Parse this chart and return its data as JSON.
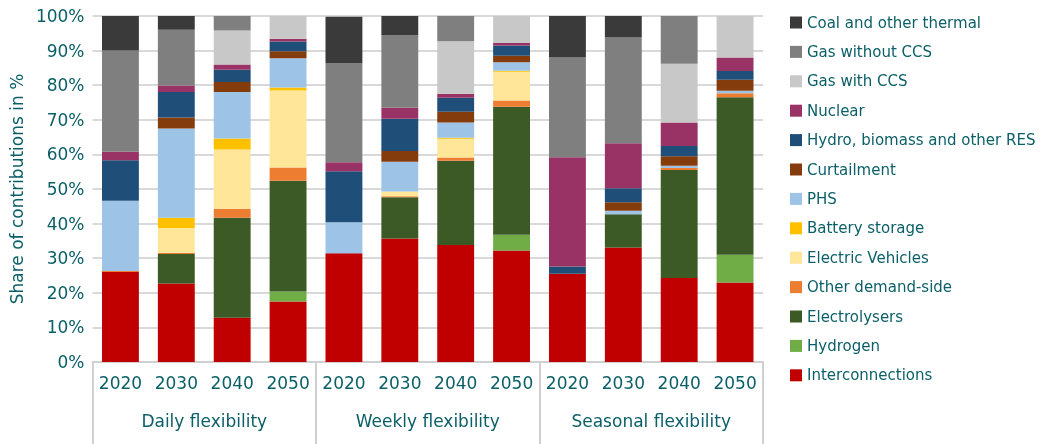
{
  "chart_data": {
    "type": "bar",
    "stacked": true,
    "ylabel": "Share of contributions in %",
    "categories": [
      "2020",
      "2030",
      "2040",
      "2050",
      "2020",
      "2030",
      "2040",
      "2050",
      "2020",
      "2030",
      "2040",
      "2050"
    ],
    "annotations": [
      "Daily flexibility",
      "Weekly flexibility",
      "Seasonal flexibility"
    ],
    "ylim": [
      0,
      100
    ],
    "yticks": [
      {
        "value": 0,
        "label": "0%"
      },
      {
        "value": 10,
        "label": "10%"
      },
      {
        "value": 20,
        "label": "20%"
      },
      {
        "value": 30,
        "label": "30%"
      },
      {
        "value": 40,
        "label": "40%"
      },
      {
        "value": 50,
        "label": "50%"
      },
      {
        "value": 60,
        "label": "60%"
      },
      {
        "value": 70,
        "label": "70%"
      },
      {
        "value": 80,
        "label": "80%"
      },
      {
        "value": 90,
        "label": "90%"
      },
      {
        "value": 100,
        "label": "100%"
      }
    ],
    "grid": "y",
    "legend": "right",
    "series": [
      {
        "name": "Interconnections",
        "color": "#c00000",
        "values": [
          26,
          22.7,
          12.8,
          17.5,
          31.4,
          35.7,
          33.8,
          32.2,
          25.5,
          33.1,
          24.3,
          23
        ]
      },
      {
        "name": "Hydrogen",
        "color": "#70ad47",
        "values": [
          0,
          0,
          0,
          2.9,
          0,
          0,
          0,
          4.6,
          0,
          0,
          0,
          8
        ]
      },
      {
        "name": "Electrolysers",
        "color": "#3b5a25",
        "values": [
          0,
          8.5,
          28.9,
          32,
          0,
          11.9,
          24.4,
          37,
          0,
          9.6,
          31.2,
          45.5
        ]
      },
      {
        "name": "Other demand-side",
        "color": "#ed7d31",
        "values": [
          0.3,
          0.4,
          2.6,
          3.8,
          null,
          0.3,
          0.9,
          1.8,
          0,
          0,
          0.6,
          1.2
        ]
      },
      {
        "name": "Electric Vehicles",
        "color": "#ffe699",
        "values": [
          0,
          7.1,
          17.1,
          22.3,
          0,
          1.4,
          5.4,
          8.3,
          0,
          0,
          0,
          0
        ]
      },
      {
        "name": "Battery storage",
        "color": "#ffc000",
        "values": [
          0,
          3,
          3.2,
          0.8,
          0,
          0,
          0.3,
          0.3,
          0,
          0,
          0,
          0
        ]
      },
      {
        "name": "PHS",
        "color": "#9dc3e6",
        "values": [
          20.3,
          25.8,
          13.4,
          8.5,
          9,
          8.6,
          4.4,
          2.4,
          0,
          1,
          0.6,
          0.7
        ]
      },
      {
        "name": "Curtailment",
        "color": "#843c0c",
        "values": [
          0,
          3.2,
          2.9,
          2,
          0,
          3.1,
          3.1,
          1.9,
          0,
          2.5,
          2.8,
          3.2
        ]
      },
      {
        "name": "Hydro, biomass and other RES",
        "color": "#1f4e79",
        "values": [
          11.7,
          7.3,
          3.6,
          2.8,
          14.7,
          9.3,
          4.1,
          3,
          2.1,
          4,
          2.9,
          2.5
        ]
      },
      {
        "name": "Nuclear",
        "color": "#993366",
        "values": [
          2.5,
          1.9,
          1.5,
          0.8,
          2.6,
          3.2,
          1.1,
          0.7,
          31.6,
          13,
          6.8,
          3.9
        ]
      },
      {
        "name": "Gas with CCS",
        "color": "#c8c8c8",
        "values": [
          0,
          0,
          9.8,
          6.6,
          0,
          0,
          15.2,
          7.8,
          0,
          0,
          17,
          12
        ]
      },
      {
        "name": "Gas without CCS",
        "color": "#7f7f7f",
        "values": [
          29.2,
          16.1,
          4.2,
          0,
          28.7,
          21,
          7.3,
          0,
          28.8,
          30.6,
          13.8,
          0
        ]
      },
      {
        "name": "Coal and other thermal",
        "color": "#3a3a3a",
        "values": [
          10,
          4,
          0,
          0,
          13.4,
          5.5,
          0,
          0,
          12,
          6.2,
          0,
          0
        ]
      }
    ]
  }
}
